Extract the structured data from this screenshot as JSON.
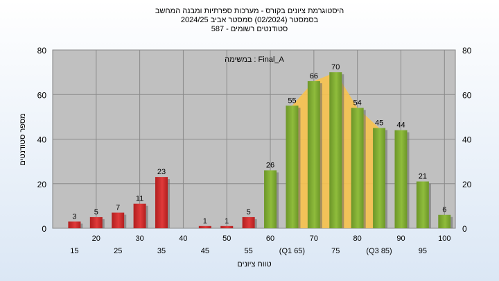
{
  "header": {
    "title_line1": "היסטוגרמת ציונים בקורס - מערכות ספרתיות ומבנה המחשב",
    "title_line2": "בסמסטר  (02/2024)  סמסטר אביב 2024/25",
    "title_line3": "סטודנטים רשומים - 587"
  },
  "chart_data": {
    "type": "bar",
    "annotation": "במשימה : Final_A",
    "xlabel": "טווח ציונים",
    "ylabel": "מספר סטודנטים",
    "ylim": [
      0,
      80
    ],
    "yticks": [
      0,
      20,
      40,
      60,
      80
    ],
    "grid": true,
    "categories": [
      "15",
      "20",
      "25",
      "30",
      "35",
      "40",
      "45",
      "50",
      "55",
      "60",
      "65",
      "70",
      "75",
      "80",
      "85",
      "90",
      "95",
      "100"
    ],
    "x_tick_labels": [
      "15",
      "20",
      "25",
      "30",
      "35",
      "40",
      "45",
      "50",
      "55",
      "60",
      "(Q1 65)",
      "70",
      "75",
      "80",
      "(Q3 85)",
      "90",
      "95",
      "100"
    ],
    "values": [
      3,
      5,
      7,
      11,
      23,
      null,
      1,
      1,
      5,
      26,
      55,
      66,
      70,
      54,
      45,
      44,
      21,
      6
    ],
    "failing_color": "#e03a3a",
    "passing_color": "#8fbc3c",
    "overlay_color": "#f7c24e",
    "quartile_range": [
      "65",
      "85"
    ]
  }
}
